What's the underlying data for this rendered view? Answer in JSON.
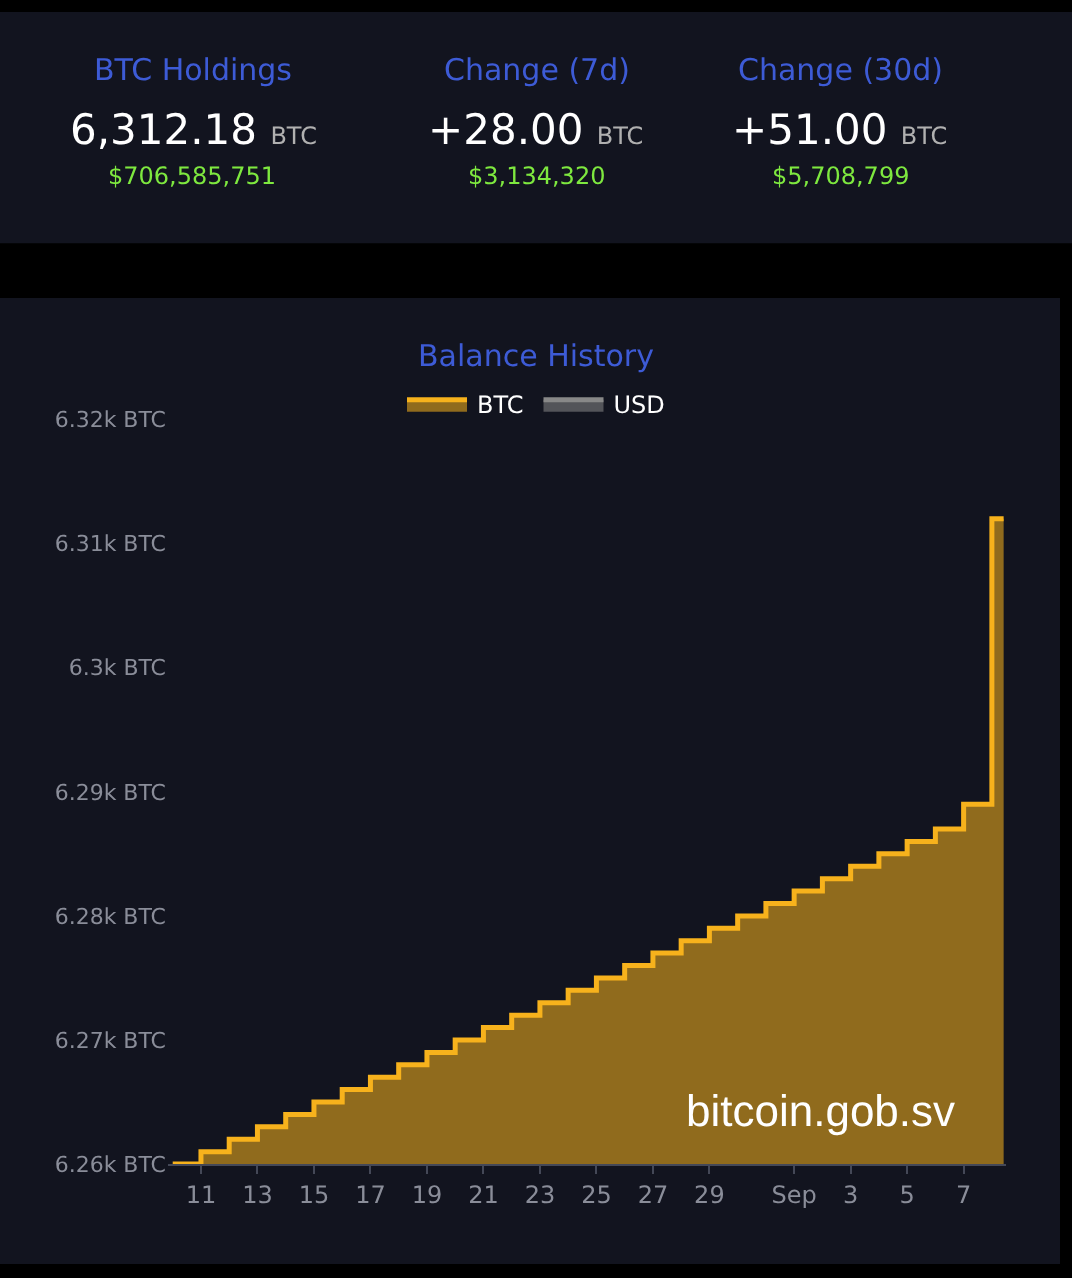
{
  "chart_data": [
    {
      "type": "other",
      "annotations": [
        "BTC Holdings",
        "6,312.18",
        "BTC",
        "$706,585,751",
        "Change (7d)",
        "+28.00",
        "BTC",
        "$3,134,320",
        "Change (30d)",
        "+51.00",
        "BTC",
        "$5,708,799"
      ]
    },
    {
      "type": "area",
      "title": "Balance History",
      "x": [
        "--08-10",
        "--08-11",
        "--08-11",
        "--08-12",
        "--08-12",
        "--08-13",
        "--08-13",
        "--08-14",
        "--08-14",
        "--08-15",
        "--08-15",
        "--08-16",
        "--08-16",
        "--08-17",
        "--08-17",
        "--08-18",
        "--08-18",
        "--08-19",
        "--08-19",
        "--08-20",
        "--08-20",
        "--08-21",
        "--08-21",
        "--08-22",
        "--08-22",
        "--08-23",
        "--08-23",
        "--08-24",
        "--08-24",
        "--08-25",
        "--08-25",
        "--08-26",
        "--08-26",
        "--08-27",
        "--08-27",
        "--08-28",
        "--08-28",
        "--08-29",
        "--08-29",
        "--08-30",
        "--08-30",
        "--08-31",
        "--08-31",
        "--09-01",
        "--09-01",
        "--09-02",
        "--09-02",
        "--09-03",
        "--09-03",
        "--09-04",
        "--09-04",
        "--09-05",
        "--09-05",
        "--09-06",
        "--09-06",
        "--09-07",
        "--09-07",
        "--09-08",
        "--09-08",
        "--09-08T10:00"
      ],
      "series": [
        {
          "name": "BTC",
          "color": "#f7b21c",
          "values": [
            6260,
            6260,
            6261,
            6261,
            6262,
            6262,
            6263,
            6263,
            6264,
            6264,
            6265,
            6265,
            6266,
            6266,
            6267,
            6267,
            6268,
            6268,
            6269,
            6269,
            6270,
            6270,
            6271,
            6271,
            6272,
            6272,
            6273,
            6273,
            6274,
            6274,
            6275,
            6275,
            6276,
            6276,
            6277,
            6277,
            6278,
            6278,
            6279,
            6279,
            6280,
            6280,
            6281,
            6281,
            6282,
            6282,
            6283,
            6283,
            6284,
            6284,
            6285,
            6285,
            6286,
            6286,
            6287,
            6287,
            6289,
            6289,
            6312,
            6312
          ]
        },
        {
          "name": "USD",
          "color": "#888888",
          "values": [
            null,
            null,
            null,
            null,
            null,
            null,
            null,
            null,
            null,
            null,
            null,
            null,
            null,
            null,
            null,
            null,
            null,
            null,
            null,
            null,
            null,
            null,
            null,
            null,
            null,
            null,
            null,
            null,
            null,
            null,
            null,
            null,
            null,
            null,
            null,
            null,
            null,
            null,
            null,
            null,
            null,
            null,
            null,
            null,
            null,
            null,
            null,
            null,
            null,
            null,
            null,
            null,
            null,
            null,
            null,
            null,
            null,
            null,
            null,
            null
          ]
        }
      ],
      "ylim": [
        6260,
        6320
      ],
      "yticks": [
        {
          "value": 6260,
          "label": "6.26k BTC"
        },
        {
          "value": 6270,
          "label": "6.27k BTC"
        },
        {
          "value": 6280,
          "label": "6.28k BTC"
        },
        {
          "value": 6290,
          "label": "6.29k BTC"
        },
        {
          "value": 6300,
          "label": "6.3k BTC"
        },
        {
          "value": 6310,
          "label": "6.31k BTC"
        },
        {
          "value": 6320,
          "label": "6.32k BTC"
        }
      ],
      "xlim": [
        "--08-09T20:00",
        "--09-08T12:00"
      ],
      "xticks": [
        {
          "value": "--08-11",
          "label": "11"
        },
        {
          "value": "--08-13",
          "label": "13"
        },
        {
          "value": "--08-15",
          "label": "15"
        },
        {
          "value": "--08-17",
          "label": "17"
        },
        {
          "value": "--08-19",
          "label": "19"
        },
        {
          "value": "--08-21",
          "label": "21"
        },
        {
          "value": "--08-23",
          "label": "23"
        },
        {
          "value": "--08-25",
          "label": "25"
        },
        {
          "value": "--08-27",
          "label": "27"
        },
        {
          "value": "--08-29",
          "label": "29"
        },
        {
          "value": "--09-01",
          "label": "Sep"
        },
        {
          "value": "--09-03",
          "label": "3"
        },
        {
          "value": "--09-05",
          "label": "5"
        },
        {
          "value": "--09-07",
          "label": "7"
        }
      ],
      "annotations": [
        "bitcoin.gob.sv"
      ],
      "grid": false,
      "legend": "top",
      "marker": "none"
    }
  ]
}
